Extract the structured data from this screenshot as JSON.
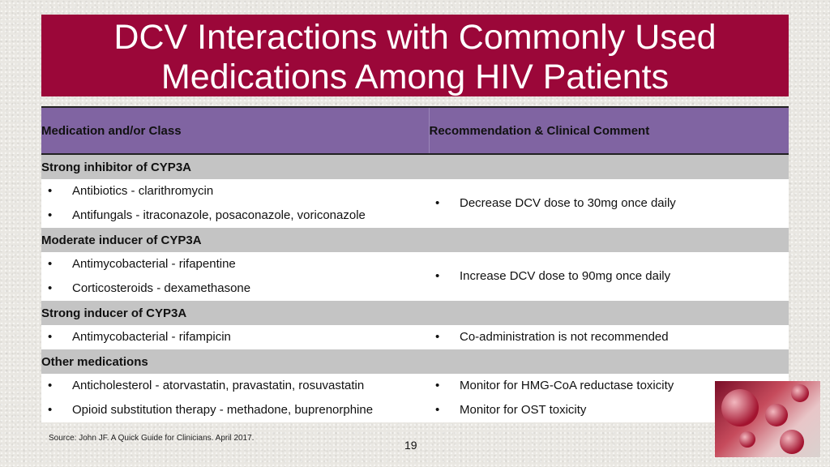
{
  "title": {
    "line1": "DCV Interactions with Commonly Used",
    "line2": "Medications Among HIV Patients"
  },
  "table": {
    "headers": [
      "Medication and/or Class",
      "Recommendation & Clinical Comment"
    ],
    "sections": [
      {
        "label": "Strong inhibitor of CYP3A",
        "meds": [
          "Antibiotics - clarithromycin",
          "Antifungals - itraconazole, posaconazole, voriconazole"
        ],
        "rec": "Decrease DCV dose to 30mg once daily"
      },
      {
        "label": "Moderate inducer of CYP3A",
        "meds": [
          "Antimycobacterial - rifapentine",
          "Corticosteroids - dexamethasone"
        ],
        "rec": "Increase DCV dose to 90mg once daily"
      },
      {
        "label": "Strong inducer of CYP3A",
        "meds": [
          "Antimycobacterial - rifampicin"
        ],
        "rec": "Co-administration is not recommended"
      },
      {
        "label": "Other medications",
        "rows": [
          {
            "med": "Anticholesterol - atorvastatin, pravastatin, rosuvastatin",
            "rec": "Monitor for HMG-CoA reductase toxicity"
          },
          {
            "med": "Opioid substitution therapy - methadone, buprenorphine",
            "rec": "Monitor for OST toxicity"
          }
        ]
      }
    ],
    "bullet": "•"
  },
  "footer": {
    "source": "Source:  John JF. A Quick Guide for Clinicians. April 2017.",
    "page_number": "19"
  },
  "colors": {
    "title_bg": "#9b0739",
    "header_bg": "#8064a2",
    "section_bg": "#c4c4c4"
  }
}
